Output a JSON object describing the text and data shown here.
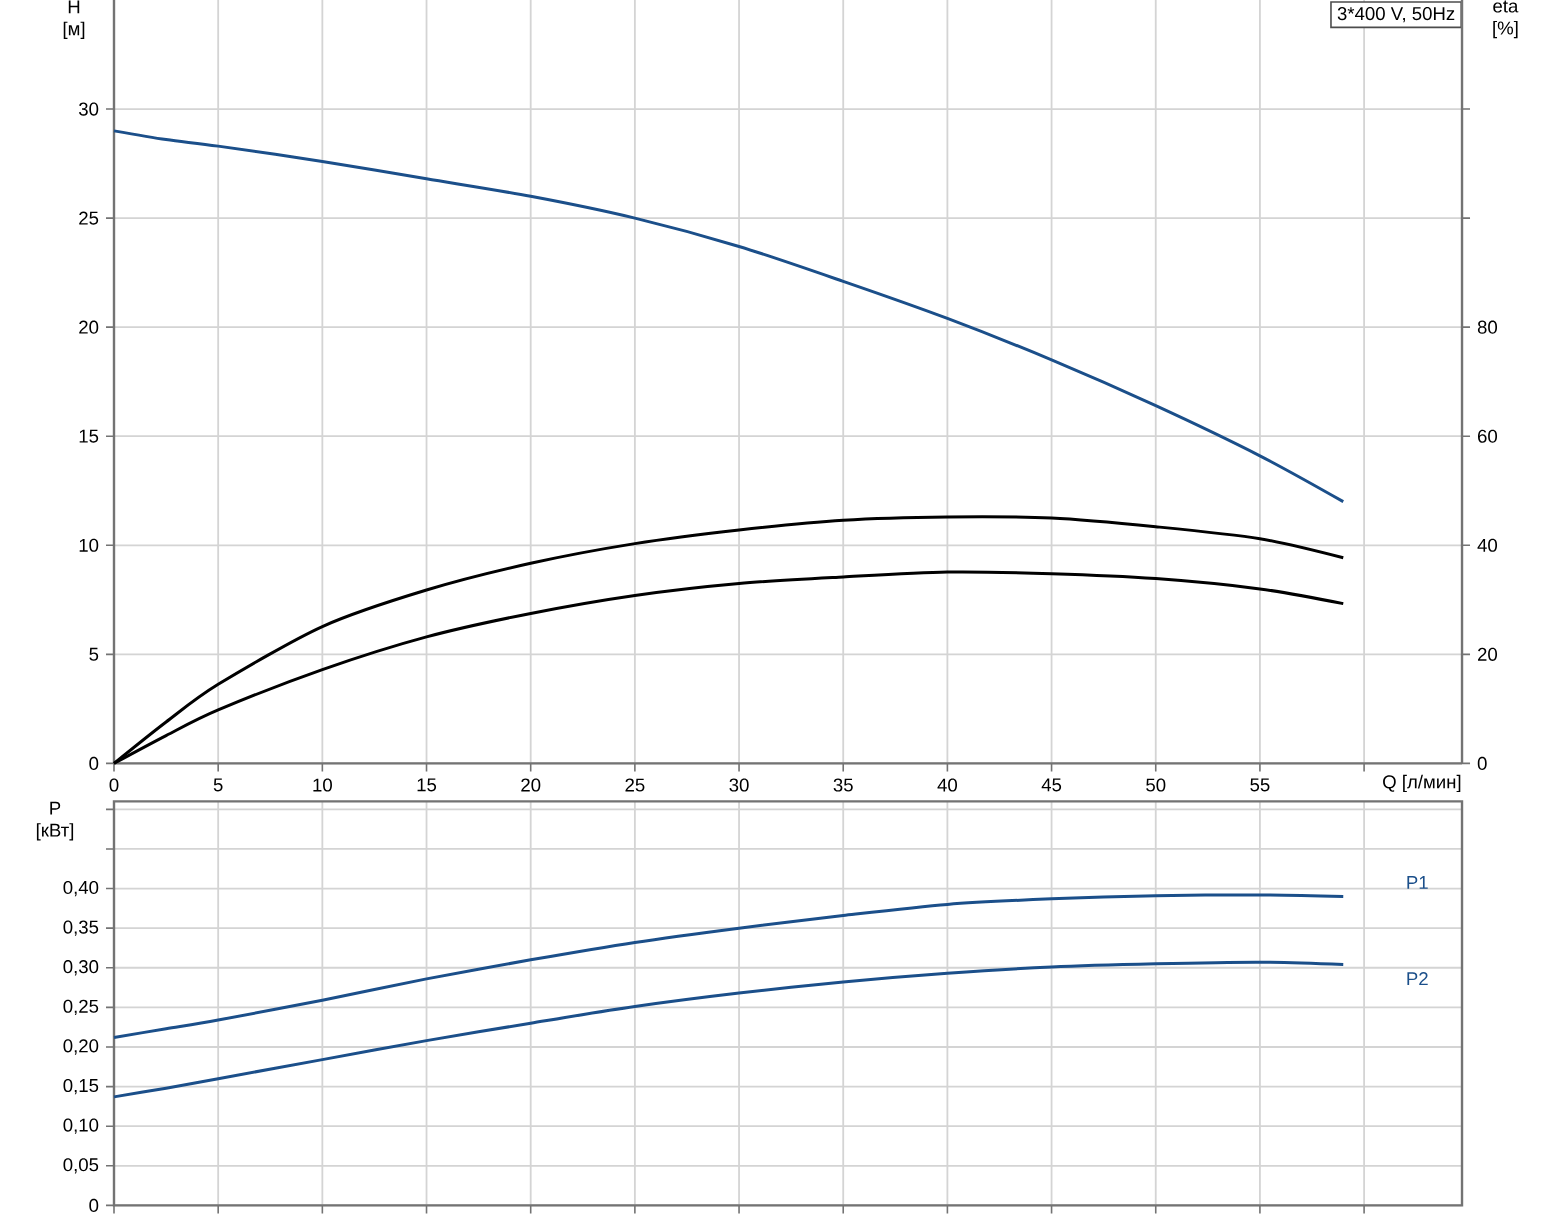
{
  "chart_data": [
    {
      "type": "line",
      "title": "3*400 V, 50Hz",
      "xlabel": "Q [л/мин]",
      "ylabel": "H [м]",
      "y2label": "eta [%]",
      "x": [
        0,
        2.5,
        5,
        10,
        15,
        20,
        25,
        30,
        35,
        40,
        45,
        50,
        55,
        59
      ],
      "xlim": [
        0,
        64.7
      ],
      "xticks": [
        0,
        5,
        10,
        15,
        20,
        25,
        30,
        35,
        40,
        45,
        50,
        55,
        {
          "value": 60,
          "label": null
        }
      ],
      "ylim": [
        0,
        35
      ],
      "yticks": [
        0,
        5,
        10,
        15,
        20,
        25,
        30
      ],
      "y2lim": [
        0,
        140
      ],
      "y2ticks": [
        0,
        20,
        40,
        60,
        80,
        {
          "value": 100,
          "label": null
        },
        {
          "value": 120,
          "label": null
        }
      ],
      "grid": true,
      "series": [
        {
          "color": "#1b4f8a",
          "values": [
            29.0,
            28.6,
            28.3,
            27.6,
            26.8,
            26.0,
            25.0,
            23.7,
            22.1,
            20.4,
            18.5,
            16.4,
            14.1,
            12.0
          ]
        },
        {
          "color": "#000000",
          "axis": "y2",
          "values": [
            0,
            7.6,
            14.5,
            25.1,
            31.8,
            36.7,
            40.3,
            42.8,
            44.6,
            45.2,
            45.0,
            43.4,
            41.2,
            37.7
          ]
        },
        {
          "color": "#000000",
          "axis": "y2",
          "values": [
            0,
            5.1,
            9.8,
            17.2,
            23.2,
            27.5,
            30.8,
            33.0,
            34.2,
            35.1,
            34.8,
            33.9,
            32.0,
            29.3
          ]
        }
      ]
    },
    {
      "type": "line",
      "ylabel": "P [кВт]",
      "x": [
        0,
        2.5,
        5,
        10,
        15,
        20,
        25,
        30,
        35,
        40,
        45,
        50,
        55,
        59
      ],
      "xlim": [
        0,
        64.7
      ],
      "xticks": [
        0,
        5,
        10,
        15,
        20,
        25,
        30,
        35,
        40,
        45,
        50,
        55,
        60
      ],
      "ylim": [
        0,
        0.51
      ],
      "yticks": [
        0,
        {
          "value": 0.05,
          "label": "0,05"
        },
        {
          "value": 0.1,
          "label": "0,10"
        },
        {
          "value": 0.15,
          "label": "0,15"
        },
        {
          "value": 0.2,
          "label": "0,20"
        },
        {
          "value": 0.25,
          "label": "0,25"
        },
        {
          "value": 0.3,
          "label": "0,30"
        },
        {
          "value": 0.35,
          "label": "0,35"
        },
        {
          "value": 0.4,
          "label": "0,40"
        },
        {
          "value": 0.45,
          "label": null
        },
        {
          "value": 0.5,
          "label": null
        }
      ],
      "tick_labels": "y",
      "grid": true,
      "series": [
        {
          "name": "P1",
          "color": "#1b4f8a",
          "values": [
            0.212,
            0.223,
            0.234,
            0.259,
            0.286,
            0.31,
            0.332,
            0.35,
            0.366,
            0.38,
            0.387,
            0.391,
            0.392,
            0.39
          ]
        },
        {
          "name": "P2",
          "color": "#1b4f8a",
          "values": [
            0.137,
            0.148,
            0.16,
            0.184,
            0.208,
            0.23,
            0.251,
            0.268,
            0.282,
            0.293,
            0.301,
            0.305,
            0.307,
            0.304
          ]
        }
      ]
    }
  ]
}
